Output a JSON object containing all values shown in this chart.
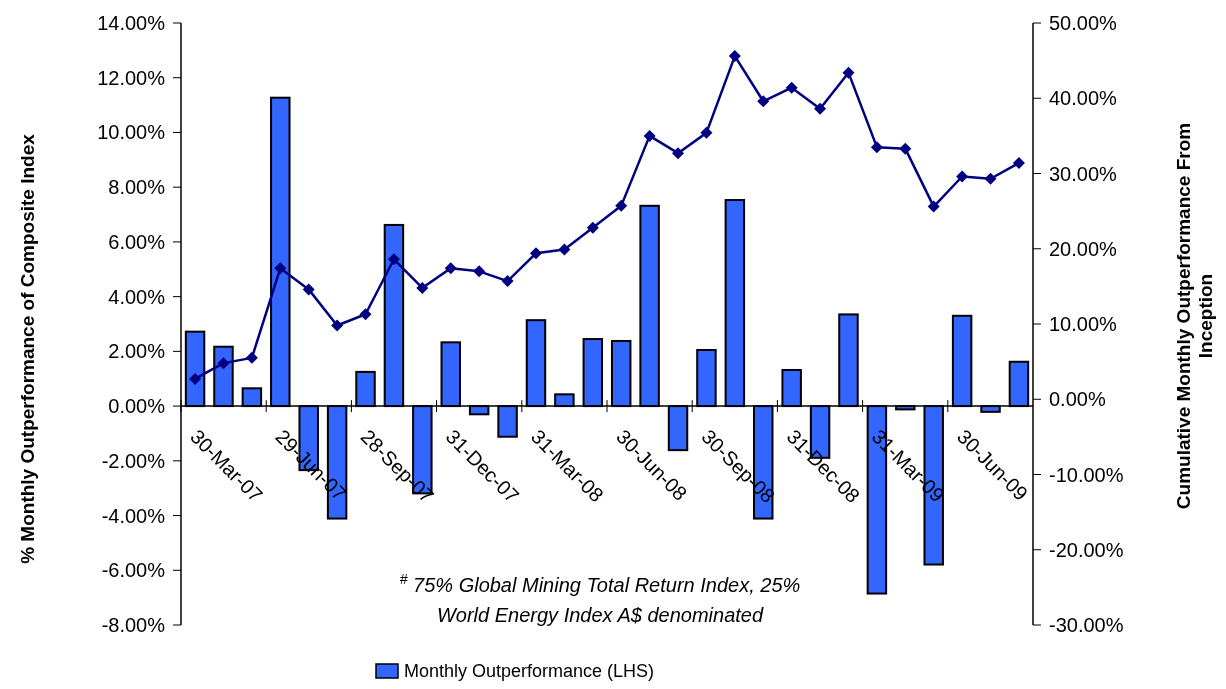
{
  "chart_data": {
    "type": "bar",
    "categories": [
      "30-Mar-07",
      null,
      null,
      "29-Jun-07",
      null,
      null,
      "28-Sep-07",
      null,
      null,
      "31-Dec-07",
      null,
      null,
      "31-Mar-08",
      null,
      null,
      "30-Jun-08",
      null,
      null,
      "30-Sep-08",
      null,
      null,
      "31-Dec-08",
      null,
      null,
      "31-Mar-09",
      null,
      null,
      "30-Jun-09",
      null,
      null
    ],
    "series": [
      {
        "name": "Monthly Outperformance (LHS)",
        "color": "#3366ff",
        "values": [
          2.72,
          2.17,
          0.65,
          11.27,
          -2.34,
          -4.11,
          1.25,
          6.62,
          -3.19,
          2.33,
          -0.3,
          -1.12,
          3.14,
          0.43,
          2.45,
          2.38,
          7.32,
          -1.61,
          2.05,
          7.53,
          -4.11,
          1.32,
          -1.89,
          3.35,
          -6.85,
          -0.12,
          -5.79,
          3.3,
          -0.21,
          1.62
        ]
      },
      {
        "type": "line",
        "axis": "y2",
        "color": "#000080",
        "marker": "diamond",
        "values": [
          2.7,
          4.8,
          5.5,
          17.4,
          14.6,
          9.8,
          11.3,
          18.6,
          14.8,
          17.4,
          17.0,
          15.7,
          19.4,
          19.9,
          22.8,
          25.7,
          35.0,
          32.7,
          35.4,
          45.6,
          39.6,
          41.4,
          38.6,
          43.4,
          33.5,
          33.3,
          25.6,
          29.6,
          29.3,
          31.4
        ]
      }
    ],
    "ylabel": "% Monthly Outperformance of Composite Index",
    "y2label": "Cumulative Monthly Outperformance From\nInception",
    "ylim": [
      -8,
      14
    ],
    "yticks": [
      {
        "value": -8,
        "label": "-8.00%"
      },
      {
        "value": -6,
        "label": "-6.00%"
      },
      {
        "value": -4,
        "label": "-4.00%"
      },
      {
        "value": -2,
        "label": "-2.00%"
      },
      {
        "value": 0,
        "label": "0.00%"
      },
      {
        "value": 2,
        "label": "2.00%"
      },
      {
        "value": 4,
        "label": "4.00%"
      },
      {
        "value": 6,
        "label": "6.00%"
      },
      {
        "value": 8,
        "label": "8.00%"
      },
      {
        "value": 10,
        "label": "10.00%"
      },
      {
        "value": 12,
        "label": "12.00%"
      },
      {
        "value": 14,
        "label": "14.00%"
      }
    ],
    "y2lim": [
      -30,
      50
    ],
    "y2ticks": [
      {
        "value": -30,
        "label": "-30.00%"
      },
      {
        "value": -20,
        "label": "-20.00%"
      },
      {
        "value": -10,
        "label": "-10.00%"
      },
      {
        "value": 0,
        "label": "0.00%"
      },
      {
        "value": 10,
        "label": "10.00%"
      },
      {
        "value": 20,
        "label": "20.00%"
      },
      {
        "value": 30,
        "label": "30.00%"
      },
      {
        "value": 40,
        "label": "40.00%"
      },
      {
        "value": 50,
        "label": "50.00%"
      }
    ],
    "annotations": [
      "$^{#}$ 75% Global Mining Total Return Index, 25%\nWorld Energy Index A$ denominated"
    ],
    "legend": "bottom",
    "grid": false
  }
}
